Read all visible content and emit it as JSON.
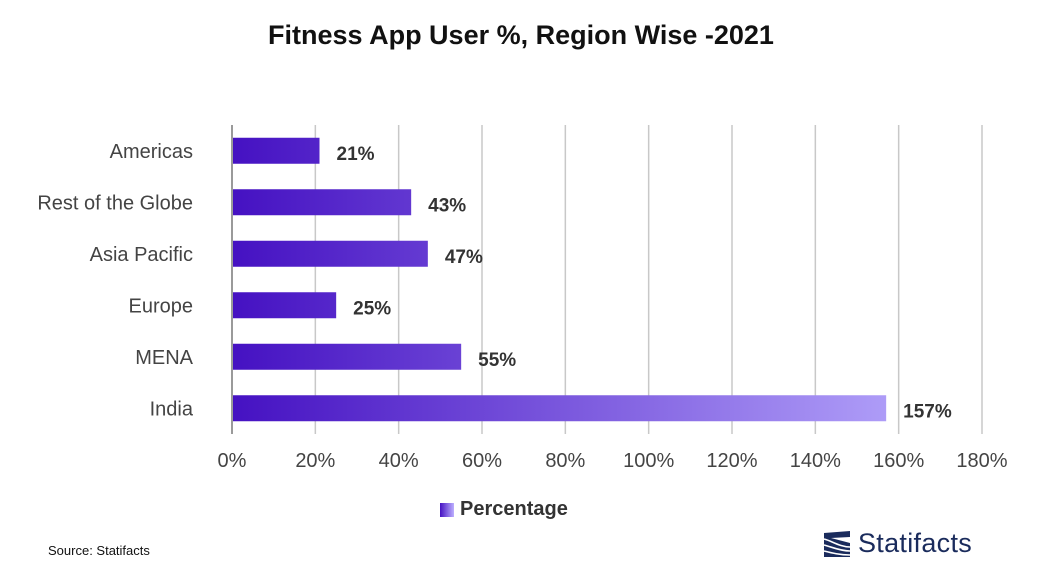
{
  "chart_data": {
    "type": "bar",
    "orientation": "horizontal",
    "title": "Fitness App User %, Region Wise -2021",
    "categories": [
      "Americas",
      "Rest of the Globe",
      "Asia Pacific",
      "Europe",
      "MENA",
      "India"
    ],
    "series": [
      {
        "name": "Percentage",
        "values": [
          21,
          43,
          47,
          25,
          55,
          157
        ]
      }
    ],
    "data_labels": [
      "21%",
      "43%",
      "47%",
      "25%",
      "55%",
      "157%"
    ],
    "x_ticks": [
      "0%",
      "20%",
      "40%",
      "60%",
      "80%",
      "100%",
      "120%",
      "140%",
      "160%",
      "180%"
    ],
    "xlim": [
      0,
      180
    ],
    "grid": true,
    "legend_position": "bottom",
    "colors": {
      "bar_start": "#4511c2",
      "bar_end": "#bdb0ff",
      "grid": "#c8c8c8"
    }
  },
  "footer": {
    "source": "Source: Statifacts",
    "logo_text": "Statifacts"
  }
}
